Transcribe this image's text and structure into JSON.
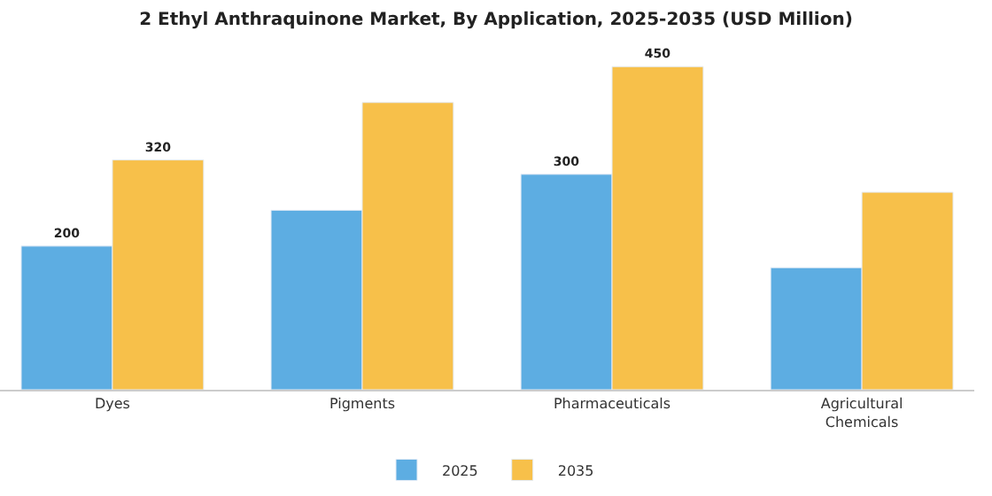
{
  "chart_data": {
    "type": "bar",
    "title": "2 Ethyl Anthraquinone Market, By Application, 2025-2035 (USD Million)",
    "categories": [
      "Dyes",
      "Pigments",
      "Pharmaceuticals",
      "Agricultural Chemicals"
    ],
    "series": [
      {
        "name": "2025",
        "color": "#5dade2",
        "values": [
          200,
          250,
          300,
          170
        ],
        "value_labels": [
          "200",
          null,
          "300",
          null
        ]
      },
      {
        "name": "2035",
        "color": "#f7c04a",
        "values": [
          320,
          400,
          450,
          275
        ],
        "value_labels": [
          "320",
          null,
          "450",
          null
        ]
      }
    ],
    "legend": "bottom"
  }
}
